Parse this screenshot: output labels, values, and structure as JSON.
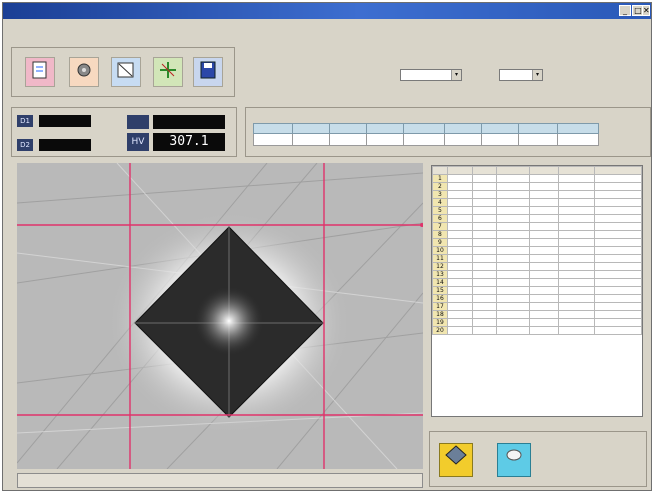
{
  "window": {
    "title": "",
    "minimize": "_",
    "maximize": "□",
    "close": "✕"
  },
  "menu": [
    "",
    "",
    "",
    "",
    ""
  ],
  "toolbar": {
    "group_label": "",
    "buttons": [
      {
        "label": "",
        "icon": "document-icon"
      },
      {
        "label": "",
        "icon": "gear-icon"
      },
      {
        "label": "",
        "icon": "ruler-icon"
      },
      {
        "label": "",
        "icon": "crosshair-icon"
      },
      {
        "label": "",
        "icon": "save-icon"
      }
    ]
  },
  "settings": {
    "group_label": "",
    "select1_value": "",
    "select2_value": ""
  },
  "measure": {
    "group_label": "",
    "d1_label": "D1",
    "d1_value": "",
    "d2_label": "D2",
    "d2_value": "",
    "hv_label": "HV",
    "hv_value": "307.1",
    "top_value": "",
    "unit": ""
  },
  "results": {
    "group_label": "",
    "headers": [
      "",
      "",
      "",
      "",
      "",
      "",
      "",
      "",
      ""
    ],
    "row": [
      "",
      "",
      "",
      "",
      "",
      "",
      "",
      "",
      ""
    ]
  },
  "data_grid": {
    "headers": [
      "",
      "",
      "",
      "",
      "",
      "",
      ""
    ],
    "rows": [
      [
        "1",
        "",
        "",
        "",
        "",
        "",
        ""
      ],
      [
        "2",
        "",
        "",
        "",
        "",
        "",
        ""
      ],
      [
        "3",
        "",
        "",
        "",
        "",
        "",
        ""
      ],
      [
        "4",
        "",
        "",
        "",
        "",
        "",
        ""
      ],
      [
        "5",
        "",
        "",
        "",
        "",
        "",
        ""
      ],
      [
        "6",
        "",
        "",
        "",
        "",
        "",
        ""
      ],
      [
        "7",
        "",
        "",
        "",
        "",
        "",
        ""
      ],
      [
        "8",
        "",
        "",
        "",
        "",
        "",
        ""
      ],
      [
        "9",
        "",
        "",
        "",
        "",
        "",
        ""
      ],
      [
        "10",
        "",
        "",
        "",
        "",
        "",
        ""
      ],
      [
        "11",
        "",
        "",
        "",
        "",
        "",
        ""
      ],
      [
        "12",
        "",
        "",
        "",
        "",
        "",
        ""
      ],
      [
        "13",
        "",
        "",
        "",
        "",
        "",
        ""
      ],
      [
        "14",
        "",
        "",
        "",
        "",
        "",
        ""
      ],
      [
        "15",
        "",
        "",
        "",
        "",
        "",
        ""
      ],
      [
        "16",
        "",
        "",
        "",
        "",
        "",
        ""
      ],
      [
        "17",
        "",
        "",
        "",
        "",
        "",
        ""
      ],
      [
        "18",
        "",
        "",
        "",
        "",
        "",
        ""
      ],
      [
        "19",
        "",
        "",
        "",
        "",
        "",
        ""
      ],
      [
        "20",
        "",
        "",
        "",
        "",
        "",
        ""
      ]
    ]
  },
  "operations": {
    "group_label": "",
    "btn1_label": "",
    "btn2_label": "",
    "note": ""
  },
  "status": {
    "text": ""
  },
  "colors": {
    "titlebar": "#2a59b8",
    "crosshair": "#e0336a",
    "accent_yellow": "#f2cc2c",
    "accent_cyan": "#5ecbe6"
  }
}
